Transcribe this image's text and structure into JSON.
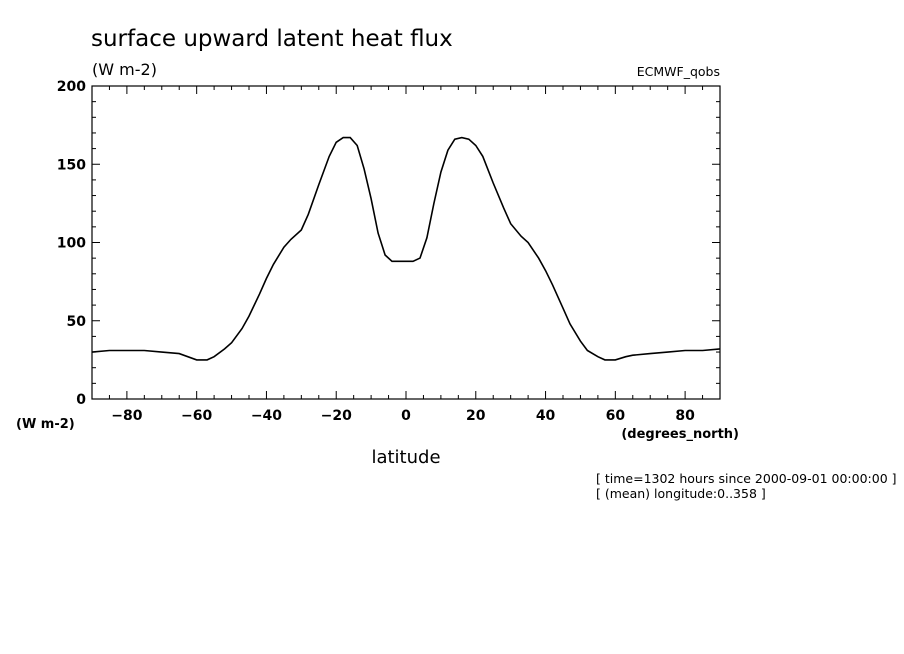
{
  "chart_data": {
    "type": "line",
    "title": "surface upward latent heat flux",
    "units_top": "(W m-2)",
    "dataset": "ECMWF_qobs",
    "ylabel_units": "(W m-2)",
    "xlabel_units": "(degrees_north)",
    "xlabel": "latitude",
    "xlim": [
      -90,
      90
    ],
    "ylim": [
      0,
      200
    ],
    "xticks": [
      -80,
      -60,
      -40,
      -20,
      0,
      20,
      40,
      60,
      80
    ],
    "yticks": [
      0,
      50,
      100,
      150,
      200
    ],
    "grid": false,
    "series": [
      {
        "x": [
          -90,
          -85,
          -80,
          -75,
          -70,
          -65,
          -60,
          -57,
          -55,
          -52,
          -50,
          -47,
          -45,
          -42,
          -40,
          -38,
          -35,
          -33,
          -30,
          -28,
          -25,
          -22,
          -20,
          -18,
          -16,
          -14,
          -12,
          -10,
          -8,
          -6,
          -4,
          -2,
          0,
          2,
          4,
          6,
          8,
          10,
          12,
          14,
          16,
          18,
          20,
          22,
          25,
          28,
          30,
          33,
          35,
          38,
          40,
          42,
          45,
          47,
          50,
          52,
          55,
          57,
          60,
          63,
          65,
          70,
          75,
          80,
          85,
          90
        ],
        "y": [
          30,
          31,
          31,
          31,
          30,
          29,
          25,
          25,
          27,
          32,
          36,
          45,
          53,
          67,
          77,
          86,
          97,
          102,
          108,
          118,
          137,
          155,
          164,
          167,
          167,
          162,
          147,
          128,
          106,
          92,
          88,
          88,
          88,
          88,
          90,
          103,
          125,
          145,
          159,
          166,
          167,
          166,
          162,
          155,
          138,
          122,
          112,
          104,
          100,
          90,
          82,
          73,
          58,
          48,
          37,
          31,
          27,
          25,
          25,
          27,
          28,
          29,
          30,
          31,
          31,
          32
        ]
      }
    ]
  },
  "annotations": {
    "line1": "[ time=1302 hours since 2000-09-01 00:00:00 ]",
    "line2": "[ (mean) longitude:0..358 ]"
  }
}
